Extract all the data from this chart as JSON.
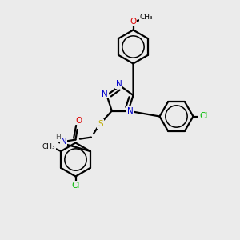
{
  "bg_color": "#ebebeb",
  "bond_color": "#000000",
  "bond_lw": 1.6,
  "atom_colors": {
    "N": "#0000cc",
    "O": "#dd0000",
    "S": "#bbaa00",
    "Cl": "#00bb00",
    "C": "#000000",
    "H": "#555555"
  },
  "font_size": 7.5,
  "figsize": [
    3.0,
    3.0
  ],
  "dpi": 100
}
